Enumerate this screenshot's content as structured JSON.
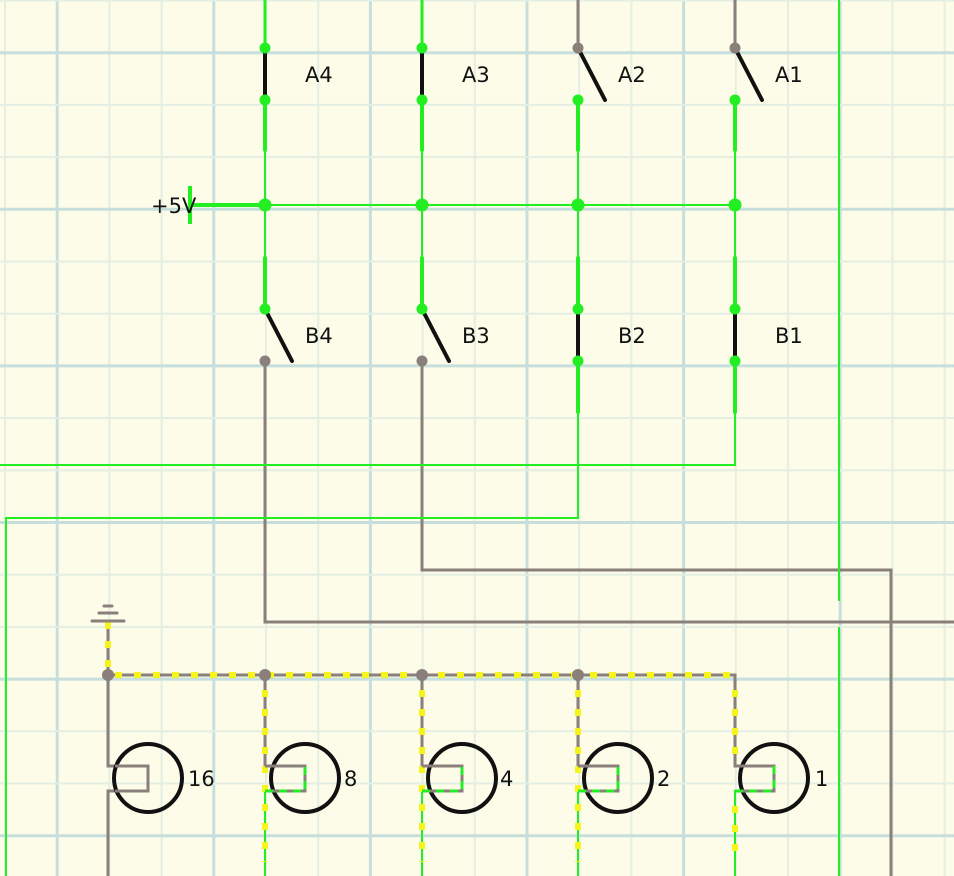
{
  "colors": {
    "background": "#fcfce9",
    "grid_major": "#c7dfdc",
    "grid_minor": "#e4eee2",
    "live_wire": "#22ee22",
    "dead_wire": "#8a7f7b",
    "signal_dashes": "#f5f51c",
    "switch_lever": "#111111",
    "lamp_ring": "#111111",
    "text": "#111111"
  },
  "supply": {
    "label": "+5V"
  },
  "switches_a": [
    {
      "label": "A4",
      "state": "closed",
      "powered": true
    },
    {
      "label": "A3",
      "state": "closed",
      "powered": true
    },
    {
      "label": "A2",
      "state": "open",
      "powered": false
    },
    {
      "label": "A1",
      "state": "open",
      "powered": false
    }
  ],
  "switches_b": [
    {
      "label": "B4",
      "state": "open",
      "powered": false
    },
    {
      "label": "B3",
      "state": "open",
      "powered": false
    },
    {
      "label": "B2",
      "state": "closed",
      "powered": true
    },
    {
      "label": "B1",
      "state": "closed",
      "powered": true
    }
  ],
  "lamps": [
    {
      "label": "16"
    },
    {
      "label": "8"
    },
    {
      "label": "4"
    },
    {
      "label": "2"
    },
    {
      "label": "1"
    }
  ],
  "ground": {
    "icon": "ground-icon"
  }
}
